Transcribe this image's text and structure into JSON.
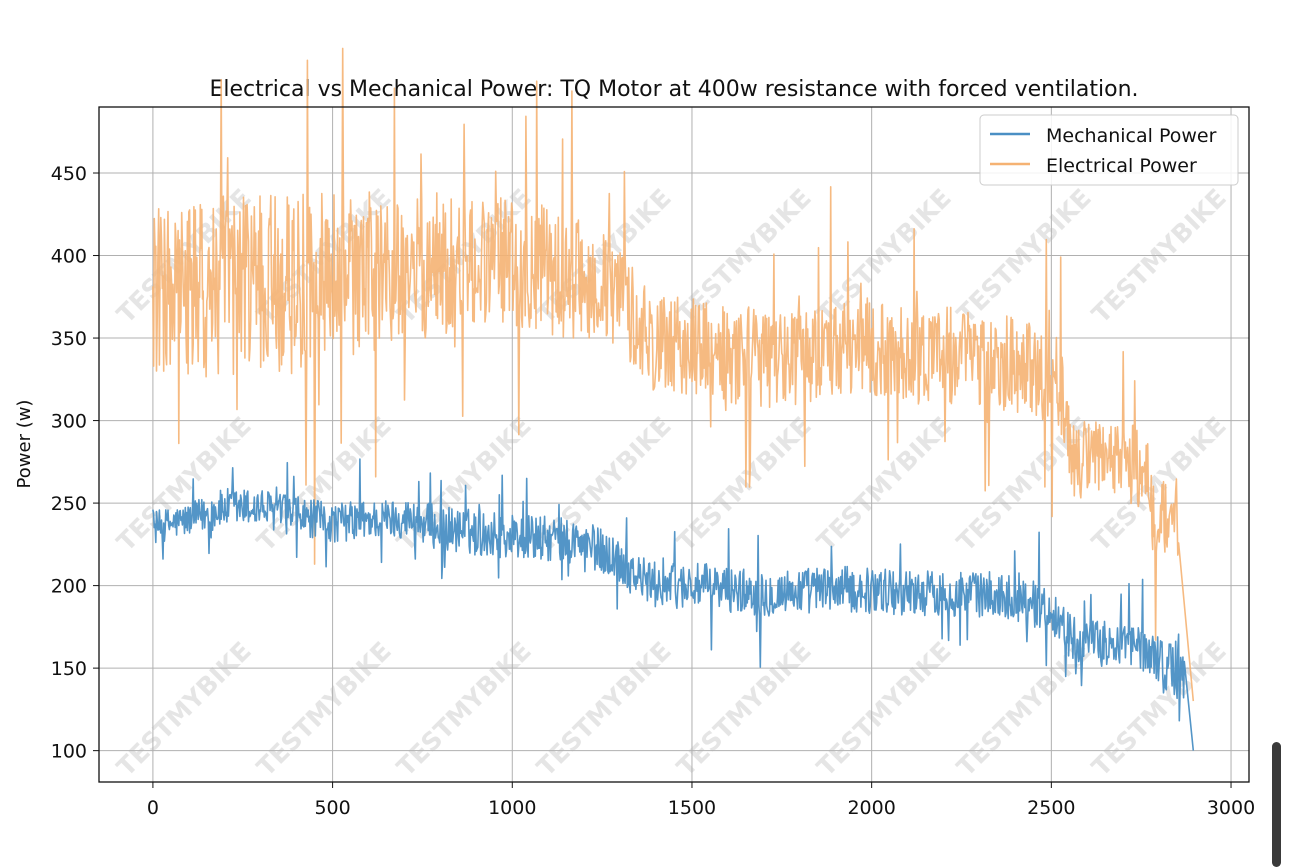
{
  "chart_data": {
    "type": "line",
    "title": "Electrical vs Mechanical Power: TQ Motor at 400w resistance with forced ventilation.",
    "xlabel": "",
    "ylabel": "Power (w)",
    "xlim": [
      -150,
      3050
    ],
    "ylim": [
      81,
      490
    ],
    "xticks": [
      0,
      500,
      1000,
      1500,
      2000,
      2500,
      3000
    ],
    "yticks": [
      100,
      150,
      200,
      250,
      300,
      350,
      400,
      450
    ],
    "grid": true,
    "legend_position": "top-right",
    "watermark": "TESTMYBIKE",
    "series": [
      {
        "name": "Mechanical Power",
        "color": "#4a8fc4",
        "x": [
          0,
          100,
          200,
          300,
          400,
          500,
          600,
          700,
          800,
          900,
          1000,
          1100,
          1200,
          1300,
          1350,
          1400,
          1500,
          1600,
          1700,
          1800,
          1900,
          2000,
          2100,
          2200,
          2300,
          2400,
          2500,
          2550,
          2600,
          2700,
          2780,
          2820,
          2870,
          2895
        ],
        "mean": [
          235,
          240,
          247,
          247,
          242,
          238,
          240,
          241,
          235,
          232,
          230,
          228,
          226,
          215,
          205,
          200,
          200,
          198,
          195,
          197,
          198,
          197,
          196,
          195,
          195,
          193,
          185,
          170,
          165,
          165,
          160,
          150,
          150,
          100
        ],
        "amp": [
          10,
          10,
          12,
          12,
          12,
          12,
          12,
          12,
          14,
          14,
          14,
          14,
          14,
          14,
          14,
          14,
          14,
          14,
          14,
          14,
          14,
          14,
          14,
          14,
          14,
          14,
          14,
          14,
          14,
          14,
          14,
          18,
          22,
          0
        ]
      },
      {
        "name": "Electrical Power",
        "color": "#f5b273",
        "x": [
          0,
          100,
          200,
          300,
          400,
          500,
          600,
          700,
          800,
          900,
          1000,
          1100,
          1200,
          1300,
          1350,
          1400,
          1500,
          1600,
          1700,
          1800,
          1900,
          2000,
          2100,
          2200,
          2300,
          2400,
          2500,
          2530,
          2550,
          2600,
          2700,
          2770,
          2785,
          2850,
          2895
        ],
        "mean": [
          380,
          375,
          382,
          385,
          383,
          385,
          385,
          390,
          395,
          395,
          398,
          390,
          385,
          375,
          360,
          345,
          345,
          340,
          338,
          340,
          345,
          345,
          340,
          340,
          338,
          335,
          325,
          320,
          280,
          275,
          275,
          270,
          240,
          240,
          130
        ],
        "amp": [
          50,
          55,
          55,
          55,
          55,
          55,
          45,
          45,
          45,
          40,
          40,
          40,
          35,
          35,
          30,
          30,
          30,
          30,
          30,
          30,
          30,
          30,
          30,
          30,
          30,
          30,
          30,
          30,
          25,
          25,
          25,
          25,
          25,
          25,
          0
        ]
      }
    ]
  }
}
